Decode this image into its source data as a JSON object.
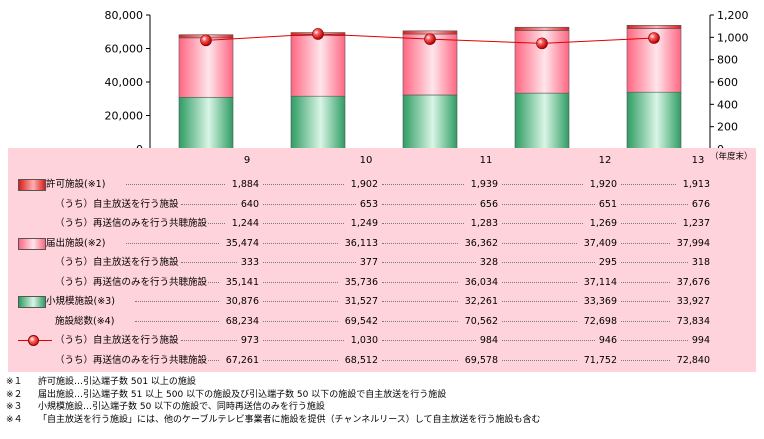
{
  "chart_data": {
    "type": "bar",
    "categories": [
      "9",
      "10",
      "11",
      "12",
      "13"
    ],
    "category_suffix": "（年度末）",
    "left_axis": {
      "ylim": [
        0,
        80000
      ],
      "ticks": [
        "0",
        "20,000",
        "40,000",
        "60,000",
        "80,000"
      ]
    },
    "right_axis": {
      "ylim": [
        0,
        1200
      ],
      "ticks": [
        "0",
        "200",
        "400",
        "600",
        "800",
        "1,000",
        "1,200"
      ]
    },
    "stacked_series": [
      {
        "name": "小規模施設(※3)",
        "values": [
          30876,
          31527,
          32261,
          33369,
          33927
        ],
        "color": "#4fbf84"
      },
      {
        "name": "届出施設(※2)",
        "values": [
          35474,
          36113,
          36362,
          37409,
          37994
        ],
        "color": "#ff7c96"
      },
      {
        "name": "許可施設(※1)",
        "values": [
          1884,
          1902,
          1939,
          1920,
          1913
        ],
        "color": "#ee3030"
      }
    ],
    "line_series": {
      "name": "(うち)自主放送を行う施設",
      "axis": "right",
      "values": [
        973,
        1030,
        984,
        946,
        994
      ],
      "color": "#e00000"
    },
    "total_series": {
      "name": "施設総数(※4)",
      "values": [
        68234,
        69542,
        70562,
        72698,
        73834
      ]
    }
  },
  "table": {
    "rows": [
      {
        "label": "許可施設(※1)",
        "marker": "red",
        "indent": false,
        "values": [
          "1,884",
          "1,902",
          "1,939",
          "1,920",
          "1,913"
        ]
      },
      {
        "label": "（うち）自主放送を行う施設",
        "marker": "",
        "indent": true,
        "values": [
          "640",
          "653",
          "656",
          "651",
          "676"
        ]
      },
      {
        "label": "（うち）再送信のみを行う共聴施設",
        "marker": "",
        "indent": true,
        "values": [
          "1,244",
          "1,249",
          "1,283",
          "1,269",
          "1,237"
        ]
      },
      {
        "label": "届出施設(※2)",
        "marker": "pink",
        "indent": false,
        "values": [
          "35,474",
          "36,113",
          "36,362",
          "37,409",
          "37,994"
        ]
      },
      {
        "label": "（うち）自主放送を行う施設",
        "marker": "",
        "indent": true,
        "values": [
          "333",
          "377",
          "328",
          "295",
          "318"
        ]
      },
      {
        "label": "（うち）再送信のみを行う共聴施設",
        "marker": "",
        "indent": true,
        "values": [
          "35,141",
          "35,736",
          "36,034",
          "37,114",
          "37,676"
        ]
      },
      {
        "label": "小規模施設(※3)",
        "marker": "green",
        "indent": false,
        "values": [
          "30,876",
          "31,527",
          "32,261",
          "33,369",
          "33,927"
        ]
      },
      {
        "label": "施設総数(※4)",
        "marker": "",
        "indent": true,
        "values": [
          "68,234",
          "69,542",
          "70,562",
          "72,698",
          "73,834"
        ]
      },
      {
        "label": "（うち）自主放送を行う施設",
        "marker": "line",
        "indent": true,
        "values": [
          "973",
          "1,030",
          "984",
          "946",
          "994"
        ]
      },
      {
        "label": "（うち）再送信のみを行う共聴施設",
        "marker": "",
        "indent": true,
        "values": [
          "67,261",
          "68,512",
          "69,578",
          "71,752",
          "72,840"
        ]
      }
    ]
  },
  "notes": [
    {
      "mark": "※１",
      "text": "許可施設…引込端子数 501 以上の施設"
    },
    {
      "mark": "※２",
      "text": "届出施設…引込端子数 51 以上 500 以下の施設及び引込端子数 50 以下の施設で自主放送を行う施設"
    },
    {
      "mark": "※３",
      "text": "小規模施設…引込端子数 50 以下の施設で、同時再送信のみを行う施設"
    },
    {
      "mark": "※４",
      "text": "「自主放送を行う施設」には、他のケーブルテレビ事業者に施設を提供（チャンネルリース）して自主放送を行う施設も含む"
    }
  ]
}
